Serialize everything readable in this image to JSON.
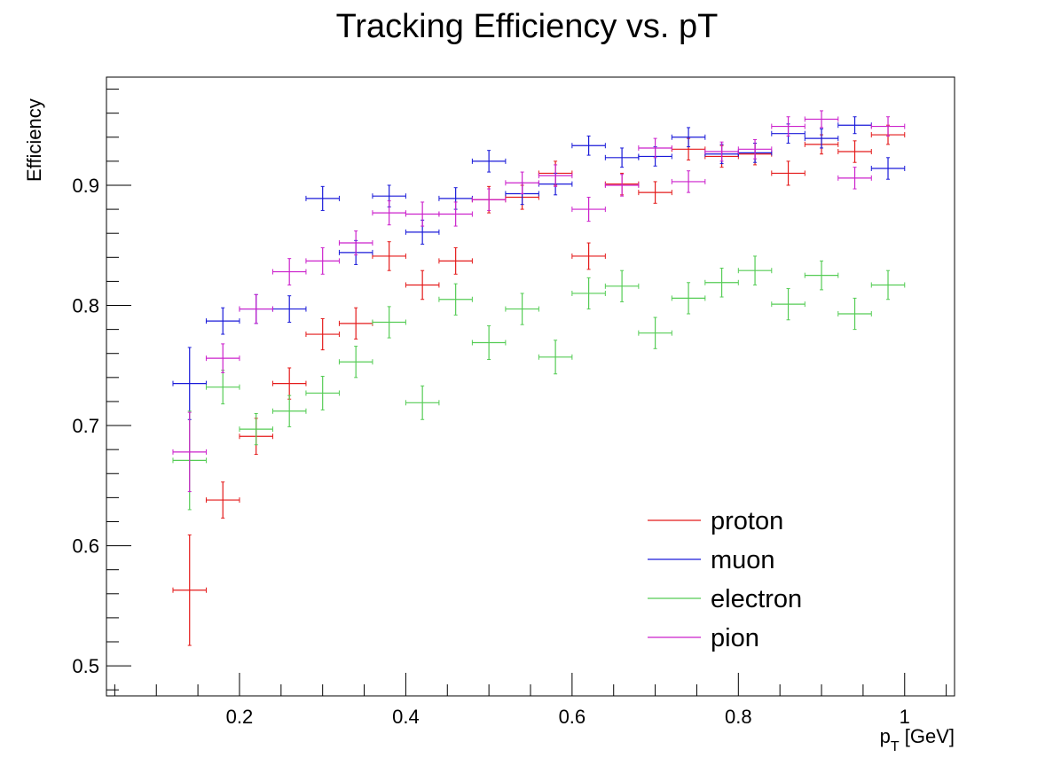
{
  "chart_data": {
    "type": "scatter",
    "title": "Tracking Efficiency vs. pT",
    "xlabel": "p_T [GeV]",
    "xlabel_main": "p",
    "xlabel_sub": "T",
    "xlabel_unit": " [GeV]",
    "ylabel": "Efficiency",
    "xlim": [
      0.04,
      1.06
    ],
    "ylim": [
      0.475,
      0.99
    ],
    "x_ticks": [
      {
        "value": 0.2,
        "label": "0.2"
      },
      {
        "value": 0.4,
        "label": "0.4"
      },
      {
        "value": 0.6,
        "label": "0.6"
      },
      {
        "value": 0.8,
        "label": "0.8"
      },
      {
        "value": 1.0,
        "label": "1"
      }
    ],
    "y_ticks": [
      {
        "value": 0.5,
        "label": "0.5"
      },
      {
        "value": 0.6,
        "label": "0.6"
      },
      {
        "value": 0.7,
        "label": "0.7"
      },
      {
        "value": 0.8,
        "label": "0.8"
      },
      {
        "value": 0.9,
        "label": "0.9"
      }
    ],
    "x_bin_half_width": 0.02,
    "x": [
      0.14,
      0.18,
      0.22,
      0.26,
      0.3,
      0.34,
      0.38,
      0.42,
      0.46,
      0.5,
      0.54,
      0.58,
      0.62,
      0.66,
      0.7,
      0.74,
      0.78,
      0.82,
      0.86,
      0.9,
      0.94,
      0.98
    ],
    "grid": false,
    "legend_position": "bottom-right",
    "series": [
      {
        "name": "proton",
        "color": "#e41a1a",
        "y": [
          0.563,
          0.638,
          0.691,
          0.735,
          0.776,
          0.785,
          0.841,
          0.817,
          0.837,
          0.888,
          0.89,
          0.91,
          0.841,
          0.901,
          0.894,
          0.93,
          0.924,
          0.926,
          0.91,
          0.934,
          0.928,
          0.942
        ],
        "yerr": [
          0.046,
          0.015,
          0.015,
          0.013,
          0.013,
          0.013,
          0.012,
          0.012,
          0.011,
          0.011,
          0.01,
          0.01,
          0.011,
          0.009,
          0.009,
          0.009,
          0.009,
          0.009,
          0.01,
          0.008,
          0.009,
          0.008
        ]
      },
      {
        "name": "muon",
        "color": "#1a1ad9",
        "y": [
          0.735,
          0.787,
          0.797,
          0.797,
          0.889,
          0.844,
          0.891,
          0.861,
          0.889,
          0.92,
          0.893,
          0.901,
          0.933,
          0.923,
          0.924,
          0.94,
          0.926,
          0.927,
          0.943,
          0.939,
          0.95,
          0.914
        ],
        "yerr": [
          0.03,
          0.011,
          0.012,
          0.011,
          0.01,
          0.01,
          0.009,
          0.01,
          0.009,
          0.009,
          0.009,
          0.009,
          0.008,
          0.008,
          0.008,
          0.008,
          0.008,
          0.008,
          0.008,
          0.008,
          0.007,
          0.009
        ]
      },
      {
        "name": "electron",
        "color": "#55cc55",
        "y": [
          0.671,
          0.732,
          0.697,
          0.712,
          0.727,
          0.753,
          0.786,
          0.719,
          0.805,
          0.769,
          0.797,
          0.757,
          0.81,
          0.816,
          0.777,
          0.806,
          0.819,
          0.829,
          0.801,
          0.825,
          0.793,
          0.817
        ],
        "yerr": [
          0.041,
          0.014,
          0.013,
          0.013,
          0.014,
          0.013,
          0.013,
          0.014,
          0.013,
          0.014,
          0.013,
          0.014,
          0.013,
          0.013,
          0.013,
          0.013,
          0.012,
          0.012,
          0.013,
          0.012,
          0.013,
          0.012
        ]
      },
      {
        "name": "pion",
        "color": "#cc22cc",
        "y": [
          0.678,
          0.756,
          0.797,
          0.828,
          0.837,
          0.852,
          0.877,
          0.876,
          0.876,
          0.888,
          0.902,
          0.908,
          0.88,
          0.9,
          0.931,
          0.903,
          0.928,
          0.93,
          0.949,
          0.955,
          0.906,
          0.949
        ],
        "yerr": [
          0.033,
          0.012,
          0.012,
          0.011,
          0.011,
          0.01,
          0.01,
          0.01,
          0.01,
          0.009,
          0.009,
          0.009,
          0.01,
          0.009,
          0.008,
          0.009,
          0.008,
          0.008,
          0.008,
          0.007,
          0.009,
          0.008
        ]
      }
    ]
  }
}
